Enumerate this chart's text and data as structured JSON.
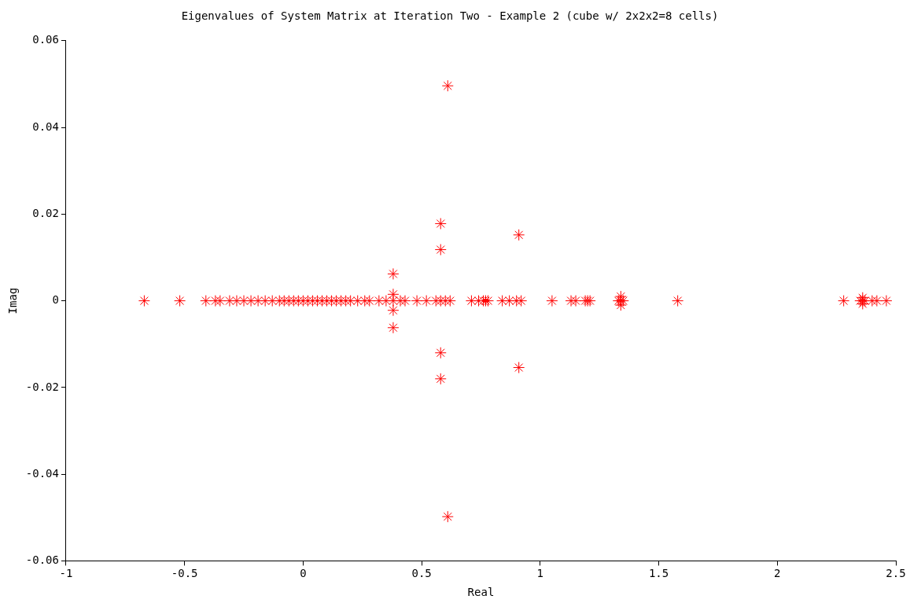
{
  "chart_data": {
    "type": "scatter",
    "title": "Eigenvalues of System Matrix at Iteration Two - Example 2 (cube w/ 2x2x2=8 cells)",
    "xlabel": "Real",
    "ylabel": "Imag",
    "x": [
      -0.67,
      -0.52,
      -0.41,
      -0.37,
      -0.35,
      -0.31,
      -0.28,
      -0.25,
      -0.22,
      -0.19,
      -0.16,
      -0.13,
      -0.1,
      -0.08,
      -0.06,
      -0.04,
      -0.02,
      0,
      0.02,
      0.04,
      0.06,
      0.08,
      0.1,
      0.12,
      0.14,
      0.16,
      0.18,
      0.2,
      0.23,
      0.26,
      0.28,
      0.32,
      0.35,
      0.38,
      0.41,
      0.43,
      0.48,
      0.52,
      0.56,
      0.58,
      0.6,
      0.62,
      0.71,
      0.74,
      0.76,
      0.77,
      0.78,
      0.84,
      0.87,
      0.9,
      0.92,
      1.05,
      1.13,
      1.15,
      1.19,
      1.2,
      1.21,
      1.33,
      1.34,
      1.35,
      1.58,
      2.28,
      2.35,
      2.36,
      2.37,
      2.4,
      2.42,
      2.46,
      0.61,
      0.61,
      0.58,
      0.58,
      0.58,
      0.58,
      0.91,
      0.91,
      0.38,
      0.38,
      0.38,
      0.38,
      1.34,
      1.34,
      2.36,
      2.36
    ],
    "values": [
      0,
      0,
      0,
      0,
      0,
      0,
      0,
      0,
      0,
      0,
      0,
      0,
      0,
      0,
      0,
      0,
      0,
      0,
      0,
      0,
      0,
      0,
      0,
      0,
      0,
      0,
      0,
      0,
      0,
      0,
      0,
      0,
      0,
      0,
      0,
      0,
      0,
      0,
      0,
      0,
      0,
      0,
      0,
      0,
      0,
      0,
      0,
      0,
      0,
      0,
      0,
      0,
      0,
      0,
      0,
      0,
      0,
      0,
      0,
      0,
      0,
      0,
      0,
      0,
      0,
      0,
      0,
      0,
      0.0496,
      -0.0498,
      0.0178,
      0.0118,
      -0.012,
      -0.018,
      0.0152,
      -0.0154,
      0.0062,
      0.0015,
      -0.0022,
      -0.0062,
      0.001,
      -0.001,
      0.0007,
      -0.0007
    ],
    "color": "#ff0000",
    "marker": "cross",
    "grid": false,
    "legend": false,
    "xlim": [
      -1,
      2.5
    ],
    "xticks": [
      -1,
      -0.5,
      0,
      0.5,
      1,
      1.5,
      2,
      2.5
    ],
    "ylim": [
      -0.06,
      0.06
    ],
    "yticks": [
      -0.06,
      -0.04,
      -0.02,
      0,
      0.02,
      0.04,
      0.06
    ]
  }
}
